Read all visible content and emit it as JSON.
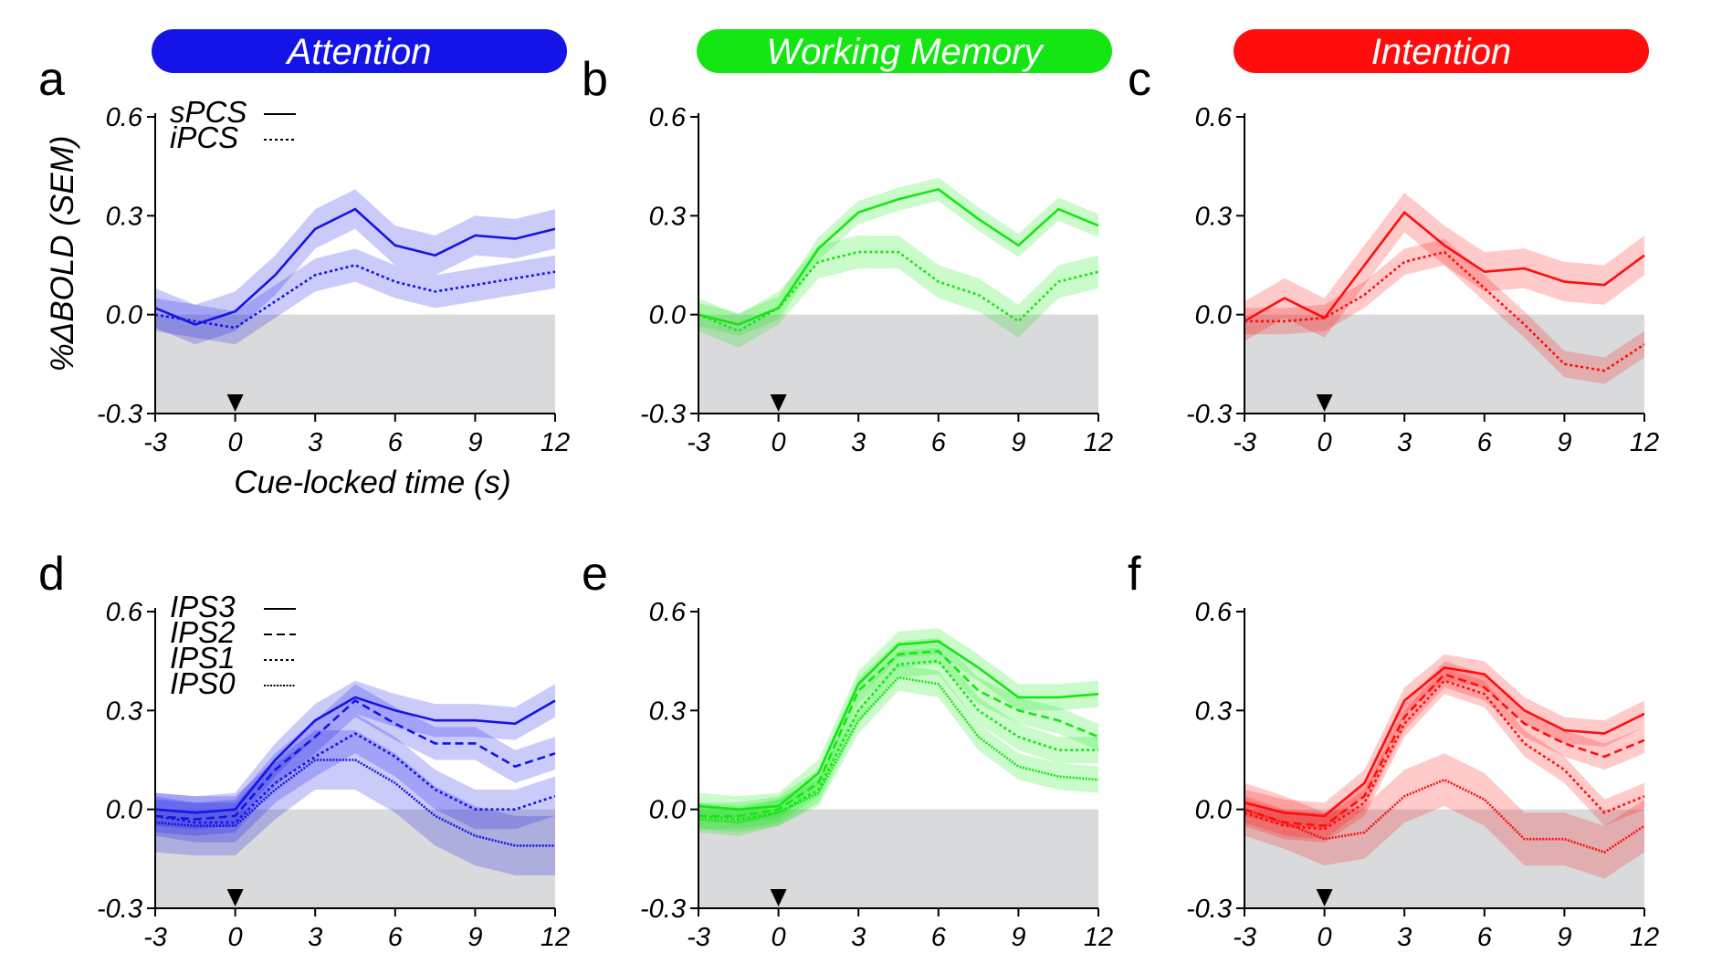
{
  "headers": [
    {
      "label": "Attention",
      "color": "#1414e6"
    },
    {
      "label": "Working Memory",
      "color": "#14e614"
    },
    {
      "label": "Intention",
      "color": "#ff0d0d"
    }
  ],
  "ylabel": "%ΔBOLD (SEM)",
  "xlabel": "Cue-locked time (s)",
  "chart_data": [
    {
      "type": "line",
      "letter": "a",
      "color": "#1414e6",
      "x": [
        -3,
        -1.5,
        0,
        1.5,
        3,
        4.5,
        6,
        7.5,
        9,
        10.5,
        12
      ],
      "xticks": [
        "-3",
        "0",
        "3",
        "6",
        "9",
        "12"
      ],
      "yticks": [
        "-0.3",
        "0.0",
        "0.3",
        "0.6"
      ],
      "xlim": [
        -3,
        12
      ],
      "ylim": [
        -0.3,
        0.6
      ],
      "legend": [
        "sPCS",
        "iPCS"
      ],
      "series": [
        {
          "name": "sPCS",
          "dash": "solid",
          "values": [
            0.02,
            -0.03,
            0.01,
            0.12,
            0.26,
            0.32,
            0.21,
            0.18,
            0.24,
            0.23,
            0.26
          ],
          "sem": 0.06
        },
        {
          "name": "iPCS",
          "dash": "dotted",
          "values": [
            0.0,
            -0.02,
            -0.04,
            0.04,
            0.12,
            0.15,
            0.1,
            0.07,
            0.09,
            0.11,
            0.13
          ],
          "sem": 0.05
        }
      ]
    },
    {
      "type": "line",
      "letter": "b",
      "color": "#14e614",
      "x": [
        -3,
        -1.5,
        0,
        1.5,
        3,
        4.5,
        6,
        7.5,
        9,
        10.5,
        12
      ],
      "xticks": [
        "-3",
        "0",
        "3",
        "6",
        "9",
        "12"
      ],
      "yticks": [
        "-0.3",
        "0.0",
        "0.3",
        "0.6"
      ],
      "xlim": [
        -3,
        12
      ],
      "ylim": [
        -0.3,
        0.6
      ],
      "legend": [],
      "series": [
        {
          "name": "sPCS",
          "dash": "solid",
          "values": [
            0.0,
            -0.03,
            0.02,
            0.2,
            0.31,
            0.35,
            0.38,
            0.29,
            0.21,
            0.32,
            0.27
          ],
          "sem": 0.035
        },
        {
          "name": "iPCS",
          "dash": "dotted",
          "values": [
            0.0,
            -0.05,
            0.02,
            0.16,
            0.19,
            0.19,
            0.1,
            0.06,
            -0.02,
            0.1,
            0.13
          ],
          "sem": 0.05
        }
      ]
    },
    {
      "type": "line",
      "letter": "c",
      "color": "#ff0d0d",
      "x": [
        -3,
        -1.5,
        0,
        1.5,
        3,
        4.5,
        6,
        7.5,
        9,
        10.5,
        12
      ],
      "xticks": [
        "-3",
        "0",
        "3",
        "6",
        "9",
        "12"
      ],
      "yticks": [
        "-0.3",
        "0.0",
        "0.3",
        "0.6"
      ],
      "xlim": [
        -3,
        12
      ],
      "ylim": [
        -0.3,
        0.6
      ],
      "legend": [],
      "series": [
        {
          "name": "sPCS",
          "dash": "solid",
          "values": [
            -0.02,
            0.05,
            -0.01,
            0.15,
            0.31,
            0.21,
            0.13,
            0.14,
            0.1,
            0.09,
            0.18
          ],
          "sem": 0.06
        },
        {
          "name": "iPCS",
          "dash": "dotted",
          "values": [
            -0.02,
            -0.02,
            -0.01,
            0.06,
            0.16,
            0.19,
            0.08,
            -0.03,
            -0.15,
            -0.17,
            -0.09
          ],
          "sem": 0.04
        }
      ]
    },
    {
      "type": "line",
      "letter": "d",
      "color": "#1414e6",
      "x": [
        -3,
        -1.5,
        0,
        1.5,
        3,
        4.5,
        6,
        7.5,
        9,
        10.5,
        12
      ],
      "xticks": [
        "-3",
        "0",
        "3",
        "6",
        "9",
        "12"
      ],
      "yticks": [
        "-0.3",
        "0.0",
        "0.3",
        "0.6"
      ],
      "xlim": [
        -3,
        12
      ],
      "ylim": [
        -0.3,
        0.6
      ],
      "legend": [
        "IPS3",
        "IPS2",
        "IPS1",
        "IPS0"
      ],
      "series": [
        {
          "name": "IPS3",
          "dash": "solid",
          "values": [
            0.0,
            -0.01,
            0.0,
            0.15,
            0.27,
            0.34,
            0.3,
            0.27,
            0.27,
            0.26,
            0.33
          ],
          "sem": 0.05
        },
        {
          "name": "IPS2",
          "dash": "dashed",
          "values": [
            -0.02,
            -0.03,
            -0.02,
            0.12,
            0.22,
            0.33,
            0.26,
            0.2,
            0.2,
            0.13,
            0.17
          ],
          "sem": 0.05
        },
        {
          "name": "IPS1",
          "dash": "dotted",
          "values": [
            -0.02,
            -0.04,
            -0.04,
            0.08,
            0.16,
            0.23,
            0.16,
            0.06,
            0.0,
            0.0,
            0.04
          ],
          "sem": 0.06
        },
        {
          "name": "IPS0",
          "dash": "densedot",
          "values": [
            -0.04,
            -0.05,
            -0.05,
            0.06,
            0.15,
            0.15,
            0.08,
            -0.02,
            -0.08,
            -0.11,
            -0.11
          ],
          "sem": 0.09
        }
      ]
    },
    {
      "type": "line",
      "letter": "e",
      "color": "#14e614",
      "x": [
        -3,
        -1.5,
        0,
        1.5,
        3,
        4.5,
        6,
        7.5,
        9,
        10.5,
        12
      ],
      "xticks": [
        "-3",
        "0",
        "3",
        "6",
        "9",
        "12"
      ],
      "yticks": [
        "-0.3",
        "0.0",
        "0.3",
        "0.6"
      ],
      "xlim": [
        -3,
        12
      ],
      "ylim": [
        -0.3,
        0.6
      ],
      "legend": [],
      "series": [
        {
          "name": "IPS3",
          "dash": "solid",
          "values": [
            0.01,
            0.0,
            0.01,
            0.11,
            0.38,
            0.5,
            0.51,
            0.43,
            0.34,
            0.34,
            0.35
          ],
          "sem": 0.04
        },
        {
          "name": "IPS2",
          "dash": "dashed",
          "values": [
            -0.02,
            -0.02,
            0.0,
            0.08,
            0.36,
            0.47,
            0.48,
            0.36,
            0.3,
            0.27,
            0.22
          ],
          "sem": 0.04
        },
        {
          "name": "IPS1",
          "dash": "dotted",
          "values": [
            -0.02,
            -0.03,
            -0.01,
            0.06,
            0.3,
            0.44,
            0.45,
            0.3,
            0.22,
            0.18,
            0.18
          ],
          "sem": 0.04
        },
        {
          "name": "IPS0",
          "dash": "densedot",
          "values": [
            -0.03,
            -0.04,
            -0.01,
            0.05,
            0.27,
            0.4,
            0.38,
            0.22,
            0.13,
            0.1,
            0.09
          ],
          "sem": 0.04
        }
      ]
    },
    {
      "type": "line",
      "letter": "f",
      "color": "#ff0d0d",
      "x": [
        -3,
        -1.5,
        0,
        1.5,
        3,
        4.5,
        6,
        7.5,
        9,
        10.5,
        12
      ],
      "xticks": [
        "-3",
        "0",
        "3",
        "6",
        "9",
        "12"
      ],
      "yticks": [
        "-0.3",
        "0.0",
        "0.3",
        "0.6"
      ],
      "xlim": [
        -3,
        12
      ],
      "ylim": [
        -0.3,
        0.6
      ],
      "legend": [],
      "series": [
        {
          "name": "IPS3",
          "dash": "solid",
          "values": [
            0.02,
            -0.01,
            -0.02,
            0.08,
            0.33,
            0.43,
            0.41,
            0.3,
            0.24,
            0.23,
            0.29
          ],
          "sem": 0.04
        },
        {
          "name": "IPS2",
          "dash": "dashed",
          "values": [
            0.0,
            -0.04,
            -0.05,
            0.04,
            0.28,
            0.41,
            0.37,
            0.26,
            0.2,
            0.16,
            0.21
          ],
          "sem": 0.04
        },
        {
          "name": "IPS1",
          "dash": "dotted",
          "values": [
            -0.01,
            -0.05,
            -0.06,
            0.02,
            0.26,
            0.39,
            0.35,
            0.2,
            0.12,
            -0.01,
            0.04
          ],
          "sem": 0.04
        },
        {
          "name": "IPS0",
          "dash": "densedot",
          "values": [
            0.0,
            -0.04,
            -0.09,
            -0.07,
            0.04,
            0.09,
            0.03,
            -0.09,
            -0.09,
            -0.13,
            -0.05
          ],
          "sem": 0.08
        }
      ]
    }
  ]
}
